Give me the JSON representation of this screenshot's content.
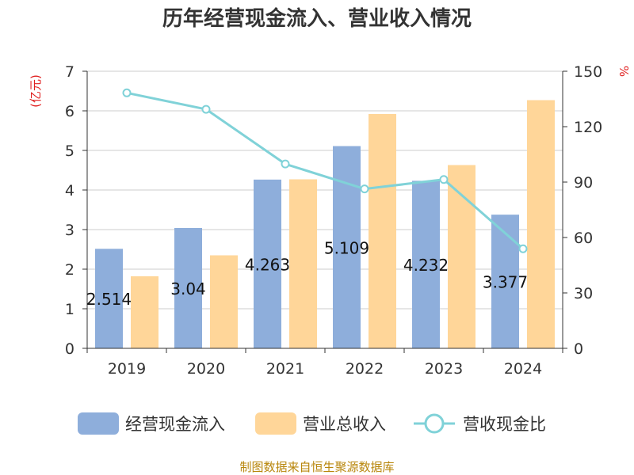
{
  "title": "历年经营现金流入、营业收入情况",
  "left_unit": "(亿元)",
  "right_unit": "%",
  "source": "制图数据来自恒生聚源数据库",
  "colors": {
    "cash_inflow": "#8eaedb",
    "revenue": "#ffd699",
    "ratio": "#80d2d8",
    "unit_red": "#e02020",
    "source": "#b8860b"
  },
  "chart_data": {
    "type": "bar",
    "title": "历年经营现金流入、营业收入情况",
    "categories": [
      "2019",
      "2020",
      "2021",
      "2022",
      "2023",
      "2024"
    ],
    "series": [
      {
        "name": "经营现金流入",
        "kind": "bar",
        "axis": "left",
        "values": [
          2.514,
          3.04,
          4.263,
          5.109,
          4.232,
          3.377
        ],
        "labels": [
          "2.514",
          "3.04",
          "4.263",
          "5.109",
          "4.232",
          "3.377"
        ]
      },
      {
        "name": "营业总收入",
        "kind": "bar",
        "axis": "left",
        "values": [
          1.82,
          2.35,
          4.27,
          5.92,
          4.63,
          6.27
        ]
      },
      {
        "name": "营收现金比",
        "kind": "line",
        "axis": "right",
        "values": [
          138.3,
          129.4,
          99.8,
          86.3,
          91.4,
          53.9
        ]
      }
    ],
    "y_left": {
      "min": 0,
      "max": 7,
      "ticks": [
        "0",
        "1",
        "2",
        "3",
        "4",
        "5",
        "6",
        "7"
      ],
      "label": "(亿元)"
    },
    "y_right": {
      "min": 0,
      "max": 150,
      "ticks": [
        "0",
        "30",
        "60",
        "90",
        "120",
        "150"
      ],
      "label": "%"
    },
    "grid": true,
    "legend_position": "bottom"
  }
}
